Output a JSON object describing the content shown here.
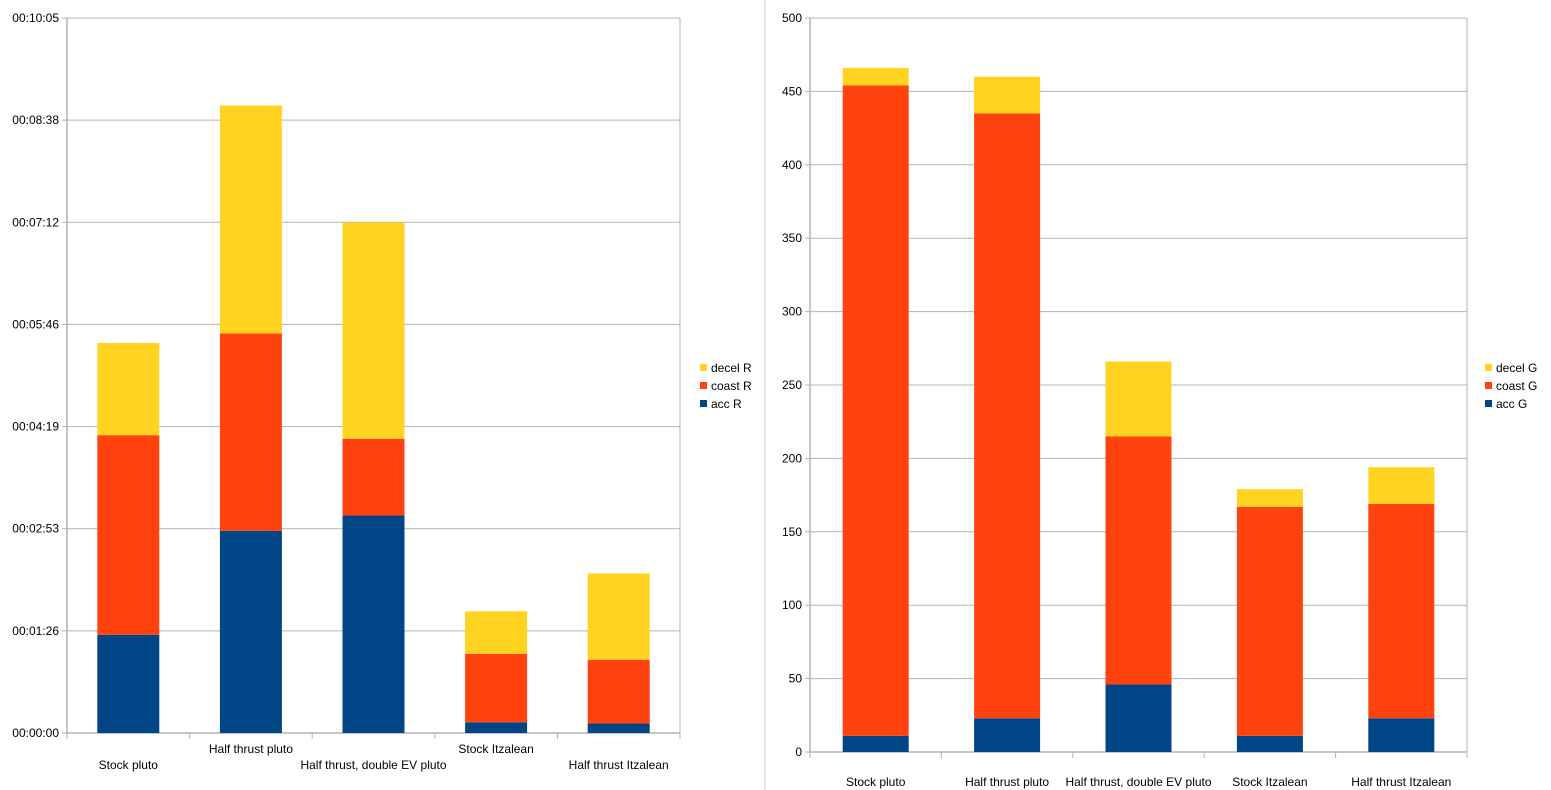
{
  "chart_data": [
    {
      "type": "bar",
      "stacked": true,
      "title": "",
      "xlabel": "",
      "ylabel": "",
      "y_format": "hh:mm:ss",
      "ylim_seconds": [
        0,
        605
      ],
      "y_ticks": [
        "00:00:00",
        "00:01:26",
        "00:02:53",
        "00:04:19",
        "00:05:46",
        "00:07:12",
        "00:08:38",
        "00:10:05"
      ],
      "categories": [
        "Stock pluto",
        "Half thrust pluto",
        "Half thrust, double EV pluto",
        "Stock Itzalean",
        "Half thrust Itzalean"
      ],
      "series": [
        {
          "name": "acc R",
          "color": "#004586",
          "values_seconds": [
            83,
            171,
            184,
            9,
            8
          ]
        },
        {
          "name": "coast R",
          "color": "#ff420e",
          "values_seconds": [
            169,
            167,
            65,
            58,
            54
          ]
        },
        {
          "name": "decel R",
          "color": "#ffd320",
          "values_seconds": [
            78,
            193,
            183,
            36,
            73
          ]
        }
      ],
      "legend": {
        "position": "right",
        "entries": [
          "decel R",
          "coast R",
          "acc R"
        ]
      },
      "grid": true
    },
    {
      "type": "bar",
      "stacked": true,
      "title": "",
      "xlabel": "",
      "ylabel": "",
      "ylim": [
        0,
        500
      ],
      "y_ticks": [
        "0",
        "50",
        "100",
        "150",
        "200",
        "250",
        "300",
        "350",
        "400",
        "450",
        "500"
      ],
      "categories": [
        "Stock pluto",
        "Half thrust pluto",
        "Half thrust, double EV pluto",
        "Stock Itzalean",
        "Half thrust Itzalean"
      ],
      "series": [
        {
          "name": "acc G",
          "color": "#004586",
          "values": [
            11,
            23,
            46,
            11,
            23
          ]
        },
        {
          "name": "coast G",
          "color": "#ff420e",
          "values": [
            443,
            412,
            169,
            156,
            146
          ]
        },
        {
          "name": "decel G",
          "color": "#ffd320",
          "values": [
            12,
            25,
            51,
            12,
            25
          ]
        }
      ],
      "legend": {
        "position": "right",
        "entries": [
          "decel G",
          "coast G",
          "acc G"
        ]
      },
      "grid": true
    }
  ]
}
